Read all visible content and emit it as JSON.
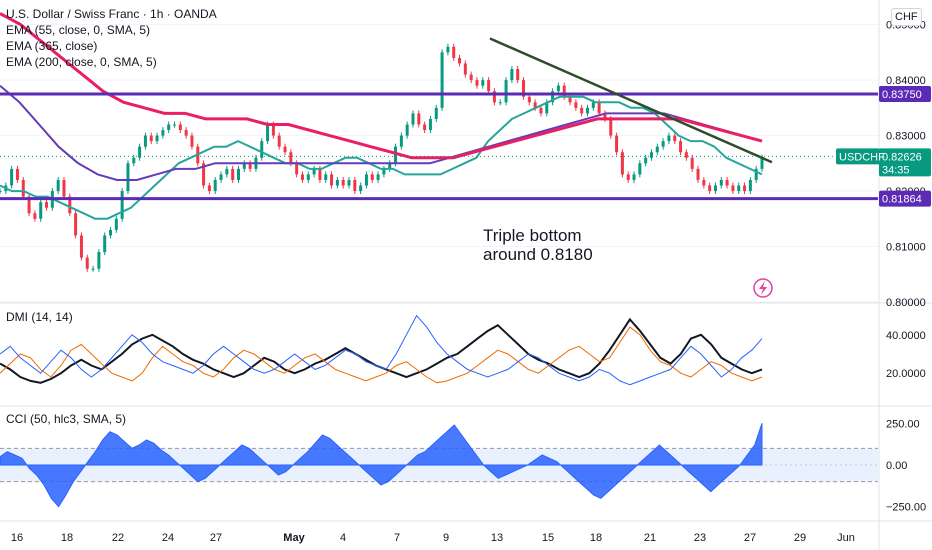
{
  "header": {
    "symbol_title": "U.S. Dollar / Swiss Franc · 1h · OANDA",
    "indicators": [
      "EMA (55, close, 0, SMA, 5)",
      "EMA (365, close)",
      "EMA (200, close, 0, SMA, 5)"
    ],
    "currency_button": "CHF"
  },
  "annotation": {
    "line1": "Triple bottom",
    "line2": "around 0.8180"
  },
  "price_tags": {
    "symbol": "USDCHF",
    "last": "0.82626",
    "countdown": "34:35",
    "resistance": "0.83750",
    "support": "0.81864"
  },
  "lightning_icon": "lightning-icon",
  "chart_data": [
    {
      "type": "line",
      "panel": "price",
      "y_ticks": [
        "0.85000",
        "0.84000",
        "0.83000",
        "0.82000",
        "0.81000",
        "0.80000"
      ],
      "ylim": [
        0.8,
        0.853
      ],
      "x_tick_labels": [
        "16",
        "18",
        "22",
        "24",
        "27",
        "May",
        "4",
        "7",
        "9",
        "13",
        "15",
        "18",
        "21",
        "23",
        "27",
        "29",
        "Jun"
      ],
      "horizontal_levels": [
        0.8375,
        0.81864
      ],
      "trendline": {
        "from": [
          0.8475
        ],
        "to": [
          0.8252
        ]
      },
      "series": [
        {
          "key": "price",
          "color": "#089981",
          "values": [
            0.82,
            0.821,
            0.824,
            0.822,
            0.819,
            0.816,
            0.815,
            0.818,
            0.817,
            0.82,
            0.822,
            0.819,
            0.816,
            0.812,
            0.808,
            0.806,
            0.806,
            0.809,
            0.812,
            0.813,
            0.815,
            0.82,
            0.825,
            0.826,
            0.828,
            0.83,
            0.829,
            0.83,
            0.831,
            0.832,
            0.832,
            0.831,
            0.83,
            0.828,
            0.825,
            0.821,
            0.82,
            0.822,
            0.823,
            0.824,
            0.822,
            0.824,
            0.825,
            0.824,
            0.826,
            0.829,
            0.832,
            0.83,
            0.828,
            0.827,
            0.825,
            0.823,
            0.822,
            0.823,
            0.824,
            0.822,
            0.823,
            0.821,
            0.822,
            0.821,
            0.822,
            0.82,
            0.821,
            0.823,
            0.822,
            0.823,
            0.824,
            0.825,
            0.828,
            0.83,
            0.832,
            0.834,
            0.832,
            0.831,
            0.833,
            0.835,
            0.845,
            0.846,
            0.844,
            0.843,
            0.841,
            0.84,
            0.839,
            0.84,
            0.838,
            0.836,
            0.836,
            0.84,
            0.842,
            0.84,
            0.837,
            0.836,
            0.835,
            0.834,
            0.836,
            0.838,
            0.839,
            0.837,
            0.836,
            0.835,
            0.834,
            0.835,
            0.836,
            0.834,
            0.833,
            0.83,
            0.827,
            0.823,
            0.822,
            0.823,
            0.825,
            0.826,
            0.827,
            0.828,
            0.829,
            0.83,
            0.829,
            0.827,
            0.826,
            0.824,
            0.822,
            0.821,
            0.82,
            0.821,
            0.822,
            0.821,
            0.82,
            0.821,
            0.82,
            0.822,
            0.824,
            0.826
          ]
        },
        {
          "key": "ema55",
          "color": "#26a69a",
          "values": [
            0.821,
            0.82,
            0.82,
            0.819,
            0.819,
            0.818,
            0.817,
            0.816,
            0.815,
            0.815,
            0.816,
            0.817,
            0.819,
            0.821,
            0.823,
            0.825,
            0.826,
            0.827,
            0.828,
            0.828,
            0.829,
            0.828,
            0.827,
            0.826,
            0.825,
            0.825,
            0.824,
            0.824,
            0.825,
            0.826,
            0.826,
            0.825,
            0.824,
            0.824,
            0.823,
            0.823,
            0.823,
            0.823,
            0.824,
            0.825,
            0.826,
            0.829,
            0.831,
            0.833,
            0.834,
            0.835,
            0.836,
            0.837,
            0.837,
            0.837,
            0.836,
            0.836,
            0.836,
            0.835,
            0.835,
            0.834,
            0.832,
            0.83,
            0.829,
            0.829,
            0.828,
            0.826,
            0.825,
            0.824,
            0.823
          ]
        },
        {
          "key": "ema365",
          "color": "#673ab7",
          "values": [
            0.839,
            0.836,
            0.832,
            0.828,
            0.825,
            0.823,
            0.822,
            0.822,
            0.823,
            0.824,
            0.824,
            0.825,
            0.825,
            0.825,
            0.825,
            0.825,
            0.825,
            0.825,
            0.825,
            0.825,
            0.825,
            0.825,
            0.825,
            0.826,
            0.827,
            0.828,
            0.829,
            0.83,
            0.831,
            0.832,
            0.833,
            0.834,
            0.834,
            0.834,
            0.834,
            0.833,
            0.832,
            0.831,
            0.83,
            0.829
          ]
        },
        {
          "key": "ema200",
          "color": "#e91e63",
          "values": [
            0.852,
            0.85,
            0.847,
            0.844,
            0.841,
            0.838,
            0.836,
            0.835,
            0.834,
            0.834,
            0.833,
            0.833,
            0.833,
            0.832,
            0.832,
            0.831,
            0.83,
            0.829,
            0.828,
            0.827,
            0.826,
            0.826,
            0.826,
            0.827,
            0.828,
            0.829,
            0.83,
            0.831,
            0.832,
            0.833,
            0.833,
            0.833,
            0.833,
            0.833,
            0.832,
            0.831,
            0.83,
            0.829
          ]
        }
      ]
    },
    {
      "type": "line",
      "panel": "dmi",
      "title": "DMI (14, 14)",
      "y_ticks": [
        "40.0000",
        "20.0000"
      ],
      "ylim": [
        5,
        55
      ],
      "series": [
        {
          "key": "adx",
          "color": "#131722",
          "values": [
            25,
            22,
            18,
            16,
            15,
            17,
            20,
            24,
            27,
            24,
            22,
            26,
            30,
            35,
            38,
            40,
            37,
            34,
            30,
            27,
            25,
            22,
            20,
            18,
            20,
            24,
            28,
            26,
            22,
            20,
            22,
            25,
            27,
            30,
            33,
            30,
            27,
            24,
            22,
            20,
            18,
            20,
            22,
            25,
            28,
            30,
            34,
            38,
            42,
            45,
            40,
            35,
            30,
            27,
            25,
            22,
            20,
            18,
            20,
            25,
            32,
            40,
            48,
            42,
            35,
            28,
            25,
            30,
            38,
            40,
            35,
            28,
            25,
            22,
            20,
            22
          ]
        },
        {
          "key": "di_plus",
          "color": "#ef6c00",
          "values": [
            20,
            25,
            30,
            28,
            22,
            18,
            24,
            32,
            35,
            30,
            25,
            20,
            18,
            16,
            20,
            28,
            34,
            30,
            26,
            24,
            20,
            18,
            22,
            28,
            32,
            30,
            26,
            22,
            20,
            24,
            28,
            30,
            26,
            22,
            20,
            18,
            16,
            18,
            20,
            24,
            26,
            22,
            18,
            15,
            16,
            18,
            20,
            24,
            28,
            32,
            30,
            26,
            22,
            20,
            24,
            28,
            32,
            34,
            30,
            26,
            28,
            36,
            44,
            40,
            32,
            26,
            24,
            20,
            18,
            22,
            26,
            24,
            20,
            18,
            16,
            18
          ]
        },
        {
          "key": "di_minus",
          "color": "#2962ff",
          "values": [
            30,
            34,
            28,
            24,
            20,
            26,
            32,
            28,
            22,
            18,
            22,
            28,
            34,
            40,
            36,
            30,
            26,
            24,
            22,
            20,
            24,
            30,
            34,
            30,
            26,
            22,
            20,
            22,
            26,
            30,
            26,
            22,
            24,
            28,
            32,
            30,
            26,
            24,
            22,
            30,
            40,
            50,
            44,
            36,
            30,
            26,
            22,
            20,
            18,
            20,
            22,
            26,
            30,
            28,
            24,
            20,
            18,
            16,
            18,
            22,
            20,
            16,
            14,
            16,
            18,
            20,
            22,
            28,
            34,
            30,
            24,
            18,
            22,
            28,
            32,
            38
          ]
        }
      ]
    },
    {
      "type": "area",
      "panel": "cci",
      "title": "CCI (50, hlc3, SMA, 5)",
      "y_ticks": [
        "250.00",
        "0.00",
        "−250.00"
      ],
      "ylim": [
        -330,
        330
      ],
      "bands": [
        100,
        -100
      ],
      "series": [
        {
          "key": "cci",
          "color": "#2962ff",
          "values": [
            50,
            80,
            60,
            40,
            -20,
            -60,
            -120,
            -200,
            -250,
            -180,
            -100,
            -40,
            20,
            80,
            150,
            200,
            180,
            140,
            100,
            120,
            150,
            130,
            90,
            60,
            20,
            -20,
            -60,
            -100,
            -80,
            -40,
            0,
            40,
            80,
            120,
            100,
            60,
            20,
            -20,
            -60,
            -40,
            0,
            40,
            80,
            130,
            180,
            160,
            120,
            80,
            40,
            0,
            -40,
            -80,
            -120,
            -100,
            -60,
            -20,
            20,
            60,
            80,
            120,
            160,
            200,
            240,
            180,
            120,
            60,
            0,
            -40,
            -80,
            -60,
            -40,
            -20,
            0,
            30,
            60,
            40,
            20,
            -20,
            -60,
            -100,
            -140,
            -180,
            -200,
            -160,
            -120,
            -80,
            -40,
            0,
            40,
            80,
            120,
            80,
            40,
            0,
            -40,
            -80,
            -120,
            -160,
            -120,
            -80,
            -40,
            0,
            60,
            120,
            250
          ]
        }
      ]
    }
  ]
}
